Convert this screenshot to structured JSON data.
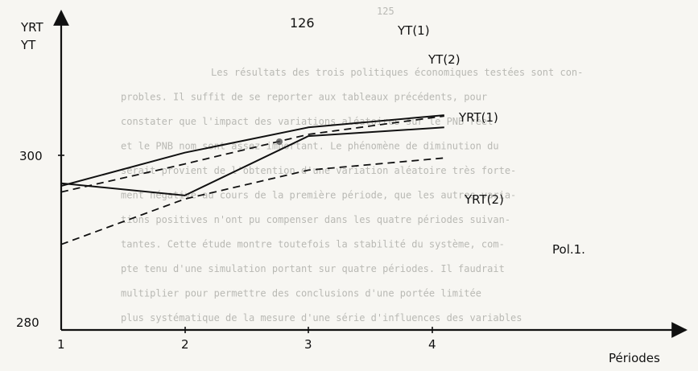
{
  "page_number": "126",
  "bleed_page_number": "125",
  "chart_data": {
    "type": "line",
    "title": "",
    "ylabel_lines": [
      "YRT",
      "YT"
    ],
    "xlabel": "Périodes",
    "x_ticks": [
      "1",
      "2",
      "3",
      "4"
    ],
    "y_ticks": [
      "280",
      "300"
    ],
    "annotation": "Pol.1.",
    "series": [
      {
        "name": "YT(1)",
        "style": "solid",
        "x": [
          1,
          2,
          3,
          4.1
        ],
        "y": [
          296.5,
          300.3,
          303.2,
          304.6
        ]
      },
      {
        "name": "YT(2)",
        "style": "dashed",
        "x": [
          1,
          2,
          3,
          4.1
        ],
        "y": [
          295.8,
          299.0,
          302.4,
          304.5
        ]
      },
      {
        "name": "YRT(1)",
        "style": "solid",
        "x": [
          1,
          2,
          3,
          4.1
        ],
        "y": [
          296.8,
          295.4,
          302.2,
          303.2
        ]
      },
      {
        "name": "YRT(2)",
        "style": "dashed",
        "x": [
          1,
          2,
          3,
          4.1
        ],
        "y": [
          289.8,
          295.0,
          298.3,
          299.7
        ]
      }
    ]
  },
  "bleed_text_lines": [
    "Les résultats des trois politiques économiques testées sont con-",
    "probles. Il suffit de se reporter aux tableaux précédents, pour",
    "constater que l'impact des variations aléatoires sur le PNB réel",
    "et le PNB nom sont assez important. Le phénomène de diminution du",
    "serait provient de l'obtention d'une variation aléatoire très forte-",
    "ment négative au cours de la première période, que les autres varia-",
    "tions positives n'ont pu compenser dans les quatre périodes suivan-",
    "tantes. Cette étude montre toutefois la stabilité du système, com-",
    "pte tenu d'une simulation portant sur quatre périodes. Il faudrait",
    "multiplier pour permettre des conclusions d'une portée limitée",
    "plus systématique de la mesure d'une série d'influences des variables"
  ]
}
